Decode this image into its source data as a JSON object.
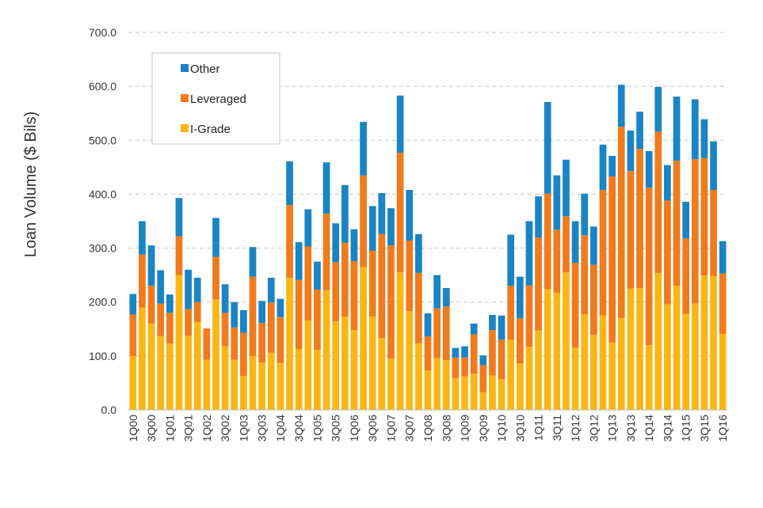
{
  "chart_data": {
    "type": "bar",
    "stacked": true,
    "ylabel": "Loan Volume ($ Bils)",
    "ylim": [
      0,
      700
    ],
    "yticks": [
      "0.0",
      "100.0",
      "200.0",
      "300.0",
      "400.0",
      "500.0",
      "600.0",
      "700.0"
    ],
    "grid": true,
    "legend": "top-left",
    "tick_labels": [
      "1Q00",
      "3Q00",
      "1Q01",
      "3Q01",
      "1Q02",
      "3Q02",
      "1Q03",
      "3Q03",
      "1Q04",
      "3Q04",
      "1Q05",
      "3Q05",
      "1Q06",
      "3Q06",
      "1Q07",
      "3Q07",
      "1Q08",
      "3Q08",
      "1Q09",
      "3Q09",
      "1Q10",
      "3Q10",
      "1Q11",
      "3Q11",
      "1Q12",
      "3Q12",
      "1Q13",
      "3Q13",
      "1Q14",
      "3Q14",
      "1Q15",
      "3Q15",
      "1Q16"
    ],
    "categories": [
      "1Q00",
      "2Q00",
      "3Q00",
      "4Q00",
      "1Q01",
      "2Q01",
      "3Q01",
      "4Q01",
      "1Q02",
      "2Q02",
      "3Q02",
      "4Q02",
      "1Q03",
      "2Q03",
      "3Q03",
      "4Q03",
      "1Q04",
      "2Q04",
      "3Q04",
      "4Q04",
      "1Q05",
      "2Q05",
      "3Q05",
      "4Q05",
      "1Q06",
      "2Q06",
      "3Q06",
      "4Q06",
      "1Q07",
      "2Q07",
      "3Q07",
      "4Q07",
      "1Q08",
      "2Q08",
      "3Q08",
      "4Q08",
      "1Q09",
      "2Q09",
      "3Q09",
      "4Q09",
      "1Q10",
      "2Q10",
      "3Q10",
      "4Q10",
      "1Q11",
      "2Q11",
      "3Q11",
      "4Q11",
      "1Q12",
      "2Q12",
      "3Q12",
      "4Q12",
      "1Q13",
      "2Q13",
      "3Q13",
      "4Q13",
      "1Q14",
      "2Q14",
      "3Q14",
      "4Q14",
      "1Q15",
      "2Q15",
      "3Q15",
      "4Q15",
      "1Q16"
    ],
    "series": [
      {
        "name": "I-Grade",
        "color": "#fbb614",
        "values": [
          100,
          190,
          160,
          137,
          123,
          250,
          137,
          163,
          93,
          205,
          118,
          93,
          63,
          100,
          88,
          106,
          87,
          245,
          113,
          166,
          111,
          222,
          164,
          173,
          148,
          265,
          173,
          133,
          95,
          255,
          183,
          124,
          73,
          96,
          92,
          59,
          62,
          67,
          33,
          64,
          57,
          130,
          86,
          117,
          147,
          224,
          217,
          255,
          115,
          177,
          139,
          175,
          125,
          170,
          225,
          226,
          120,
          254,
          196,
          230,
          178,
          197,
          249,
          248,
          141
        ]
      },
      {
        "name": "Leveraged",
        "color": "#f07b1c",
        "values": [
          77,
          98,
          70,
          60,
          57,
          72,
          50,
          37,
          58,
          79,
          62,
          60,
          80,
          147,
          73,
          93,
          85,
          135,
          128,
          137,
          112,
          142,
          110,
          137,
          128,
          170,
          122,
          193,
          210,
          222,
          131,
          130,
          63,
          92,
          100,
          38,
          35,
          73,
          50,
          84,
          73,
          100,
          84,
          114,
          173,
          177,
          117,
          104,
          158,
          147,
          130,
          233,
          308,
          355,
          218,
          258,
          292,
          262,
          192,
          232,
          140,
          268,
          218,
          160,
          112
        ]
      },
      {
        "name": "Other",
        "color": "#1a84c4",
        "values": [
          38,
          62,
          75,
          62,
          34,
          71,
          73,
          45,
          0,
          72,
          53,
          47,
          42,
          55,
          41,
          46,
          34,
          81,
          70,
          69,
          52,
          95,
          72,
          107,
          59,
          99,
          83,
          76,
          69,
          106,
          94,
          72,
          43,
          62,
          34,
          18,
          21,
          20,
          18,
          28,
          45,
          95,
          77,
          119,
          76,
          170,
          101,
          105,
          77,
          77,
          71,
          84,
          38,
          78,
          75,
          69,
          68,
          83,
          66,
          119,
          68,
          111,
          72,
          90,
          60
        ]
      }
    ]
  }
}
